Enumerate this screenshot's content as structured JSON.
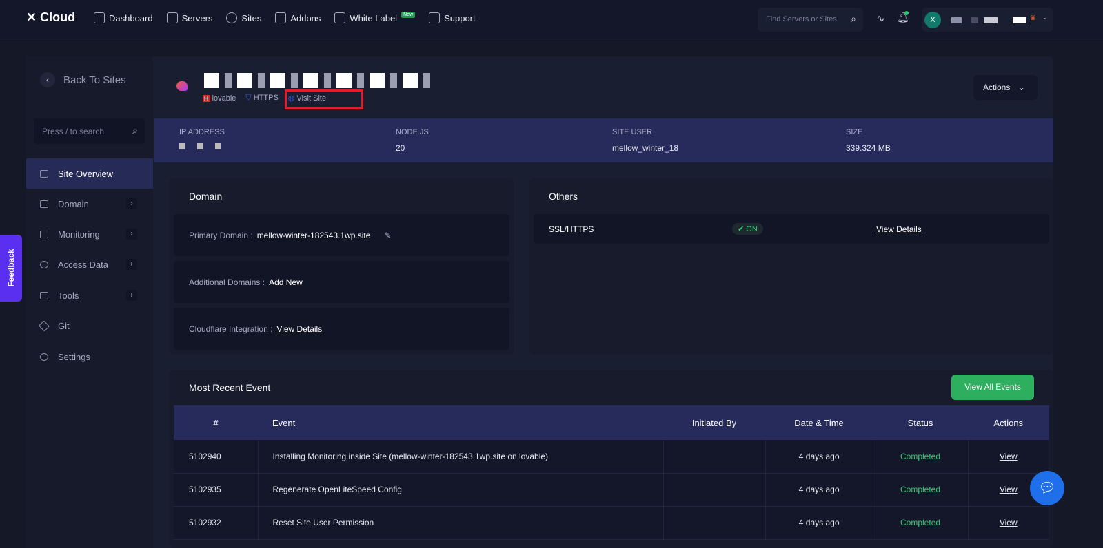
{
  "header": {
    "logo": "Cloud",
    "nav": [
      {
        "label": "Dashboard",
        "icon": "grid-icon"
      },
      {
        "label": "Servers",
        "icon": "server-icon"
      },
      {
        "label": "Sites",
        "icon": "globe-icon"
      },
      {
        "label": "Addons",
        "icon": "puzzle-icon"
      },
      {
        "label": "White Label",
        "icon": "document-plus-icon",
        "badge": "New"
      },
      {
        "label": "Support",
        "icon": "support-icon"
      }
    ],
    "search_placeholder": "Find Servers or Sites",
    "avatar_initial": "X",
    "avatar_sub": "TA"
  },
  "sidebar": {
    "back": "Back To Sites",
    "search_placeholder": "Press / to search",
    "items": [
      {
        "label": "Site Overview",
        "active": true
      },
      {
        "label": "Domain",
        "arrow": true
      },
      {
        "label": "Monitoring",
        "arrow": true
      },
      {
        "label": "Access Data",
        "arrow": true
      },
      {
        "label": "Tools",
        "arrow": true
      },
      {
        "label": "Git"
      },
      {
        "label": "Settings"
      }
    ]
  },
  "feedback": "Feedback",
  "site": {
    "server": "lovable",
    "https": "HTTPS",
    "visit": "Visit Site",
    "actions": "Actions"
  },
  "info": {
    "ip_label": "IP ADDRESS",
    "node_label": "NODE.JS",
    "node": "20",
    "user_label": "SITE USER",
    "user": "mellow_winter_18",
    "size_label": "SIZE",
    "size": "339.324 MB"
  },
  "domain": {
    "title": "Domain",
    "primary_label": "Primary Domain :",
    "primary": "mellow-winter-182543.1wp.site",
    "additional_label": "Additional Domains :",
    "add_new": "Add New",
    "cloudflare_label": "Cloudflare Integration :",
    "view_details": "View Details"
  },
  "others": {
    "title": "Others",
    "ssl_label": "SSL/HTTPS",
    "ssl_status": "ON",
    "view_details": "View Details"
  },
  "events": {
    "title": "Most Recent Event",
    "view_all": "View All Events",
    "columns": [
      "#",
      "Event",
      "Initiated By",
      "Date & Time",
      "Status",
      "Actions"
    ],
    "rows": [
      {
        "id": "5102940",
        "event": "Installing Monitoring inside Site (mellow-winter-182543.1wp.site on lovable)",
        "by": "",
        "date": "4 days ago",
        "status": "Completed",
        "action": "View"
      },
      {
        "id": "5102935",
        "event": "Regenerate OpenLiteSpeed Config",
        "by": "",
        "date": "4 days ago",
        "status": "Completed",
        "action": "View"
      },
      {
        "id": "5102932",
        "event": "Reset Site User Permission",
        "by": "",
        "date": "4 days ago",
        "status": "Completed",
        "action": "View"
      }
    ]
  },
  "colors": {
    "accent": "#262b5b",
    "success": "#2eaf5f",
    "feedback": "#5b2ff0",
    "highlight": "#e01e2b"
  }
}
